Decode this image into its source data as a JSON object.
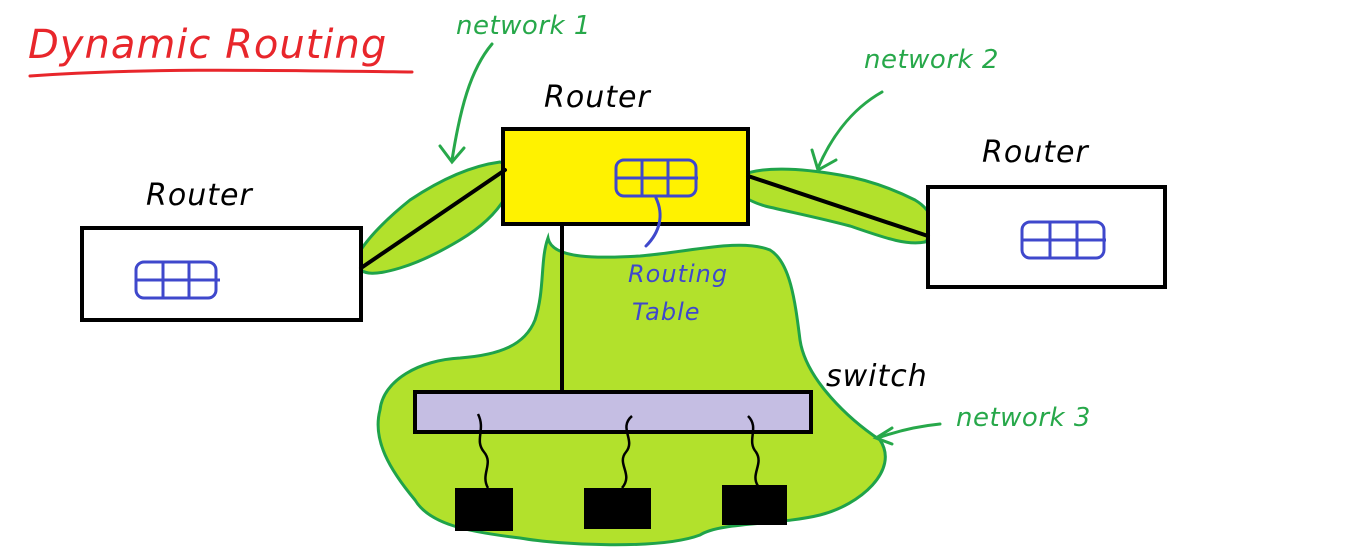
{
  "title": "Dynamic Routing",
  "routers": {
    "left": {
      "label": "Router"
    },
    "center": {
      "label": "Router"
    },
    "right": {
      "label": "Router"
    }
  },
  "networks": {
    "n1": "network 1",
    "n2": "network 2",
    "n3": "network 3"
  },
  "routing_table": {
    "line1": "Routing",
    "line2": "Table"
  },
  "switch": {
    "label": "switch"
  },
  "colors": {
    "title": "#e8262b",
    "network_fill": "#b2e12c",
    "network_stroke": "#1fa34a",
    "network_text": "#27a84a",
    "router_highlight": "#fff200",
    "switch_fill": "#c5bee3",
    "table_icon": "#3f48cc",
    "ink": "#000000"
  }
}
